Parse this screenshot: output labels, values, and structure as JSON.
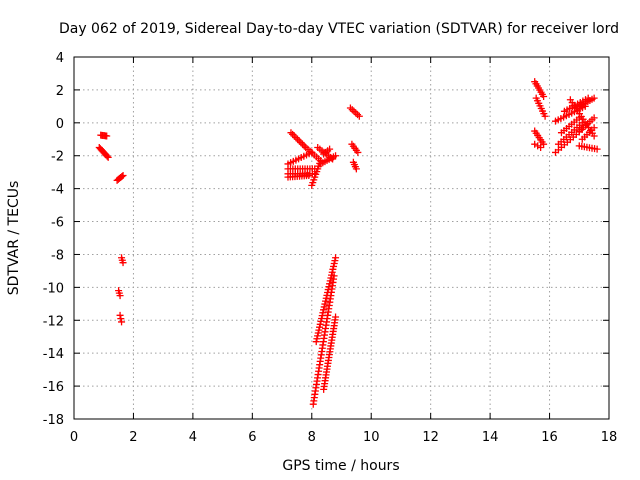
{
  "chart_data": {
    "type": "scatter",
    "title": "Day 062 of 2019, Sidereal Day-to-day VTEC variation (SDTVAR) for receiver lord",
    "xlabel": "GPS time / hours",
    "ylabel": "SDTVAR / TECUs",
    "xlim": [
      0,
      18
    ],
    "ylim": [
      -18,
      4
    ],
    "xticks": [
      0,
      2,
      4,
      6,
      8,
      10,
      12,
      14,
      16,
      18
    ],
    "yticks": [
      -18,
      -16,
      -14,
      -12,
      -10,
      -8,
      -6,
      -4,
      -2,
      0,
      2,
      4
    ],
    "grid": true,
    "marker": "+",
    "color": "#ff0000",
    "segments": [
      {
        "x": [
          0.9,
          1.1
        ],
        "y": [
          -0.75,
          -0.8
        ],
        "n": 6
      },
      {
        "x": [
          0.85,
          1.15
        ],
        "y": [
          -1.5,
          -2.1
        ],
        "n": 10
      },
      {
        "x": [
          1.45,
          1.65
        ],
        "y": [
          -3.5,
          -3.2
        ],
        "n": 6
      },
      {
        "x": [
          1.6,
          1.65
        ],
        "y": [
          -8.2,
          -8.5
        ],
        "n": 3
      },
      {
        "x": [
          1.5,
          1.55
        ],
        "y": [
          -10.2,
          -10.5
        ],
        "n": 3
      },
      {
        "x": [
          1.55,
          1.6
        ],
        "y": [
          -11.7,
          -12.1
        ],
        "n": 3
      },
      {
        "x": [
          7.3,
          7.8
        ],
        "y": [
          -0.6,
          -1.5
        ],
        "n": 10
      },
      {
        "x": [
          7.8,
          8.3
        ],
        "y": [
          -1.5,
          -2.3
        ],
        "n": 8
      },
      {
        "x": [
          7.2,
          8.0
        ],
        "y": [
          -2.5,
          -1.8
        ],
        "n": 10
      },
      {
        "x": [
          7.2,
          8.1
        ],
        "y": [
          -2.8,
          -2.8
        ],
        "n": 12
      },
      {
        "x": [
          7.2,
          8.1
        ],
        "y": [
          -3.1,
          -3.1
        ],
        "n": 12
      },
      {
        "x": [
          7.2,
          7.9
        ],
        "y": [
          -3.3,
          -3.2
        ],
        "n": 10
      },
      {
        "x": [
          8.0,
          8.3
        ],
        "y": [
          -3.8,
          -2.3
        ],
        "n": 10
      },
      {
        "x": [
          8.2,
          8.7
        ],
        "y": [
          -1.5,
          -2.2
        ],
        "n": 8
      },
      {
        "x": [
          8.3,
          8.8
        ],
        "y": [
          -2.5,
          -2.0
        ],
        "n": 8
      },
      {
        "x": [
          8.4,
          8.6
        ],
        "y": [
          -1.9,
          -1.6
        ],
        "n": 4
      },
      {
        "x": [
          8.05,
          8.75
        ],
        "y": [
          -17.1,
          -9.3
        ],
        "n": 40
      },
      {
        "x": [
          8.15,
          8.8
        ],
        "y": [
          -13.3,
          -8.2
        ],
        "n": 30
      },
      {
        "x": [
          8.4,
          8.8
        ],
        "y": [
          -16.2,
          -11.8
        ],
        "n": 26
      },
      {
        "x": [
          9.3,
          9.6
        ],
        "y": [
          0.9,
          0.4
        ],
        "n": 6
      },
      {
        "x": [
          9.35,
          9.55
        ],
        "y": [
          -1.3,
          -1.8
        ],
        "n": 5
      },
      {
        "x": [
          9.4,
          9.5
        ],
        "y": [
          -2.4,
          -2.8
        ],
        "n": 4
      },
      {
        "x": [
          15.5,
          15.8
        ],
        "y": [
          2.5,
          1.6
        ],
        "n": 8
      },
      {
        "x": [
          15.55,
          15.85
        ],
        "y": [
          1.5,
          0.4
        ],
        "n": 8
      },
      {
        "x": [
          15.5,
          15.8
        ],
        "y": [
          -0.5,
          -1.3
        ],
        "n": 7
      },
      {
        "x": [
          15.5,
          15.7
        ],
        "y": [
          -1.3,
          -1.5
        ],
        "n": 3
      },
      {
        "x": [
          16.2,
          17.1
        ],
        "y": [
          -1.8,
          -0.4
        ],
        "n": 10
      },
      {
        "x": [
          16.3,
          17.1
        ],
        "y": [
          -1.3,
          0.0
        ],
        "n": 10
      },
      {
        "x": [
          16.2,
          17.2
        ],
        "y": [
          0.1,
          1.0
        ],
        "n": 12
      },
      {
        "x": [
          16.4,
          17.0
        ],
        "y": [
          -0.6,
          0.3
        ],
        "n": 8
      },
      {
        "x": [
          16.5,
          17.3
        ],
        "y": [
          0.7,
          1.5
        ],
        "n": 10
      },
      {
        "x": [
          16.7,
          17.5
        ],
        "y": [
          1.4,
          -0.8
        ],
        "n": 14
      },
      {
        "x": [
          17.0,
          17.5
        ],
        "y": [
          1.0,
          1.5
        ],
        "n": 8
      },
      {
        "x": [
          17.0,
          17.5
        ],
        "y": [
          -0.5,
          0.3
        ],
        "n": 8
      },
      {
        "x": [
          17.0,
          17.6
        ],
        "y": [
          -1.4,
          -1.6
        ],
        "n": 8
      },
      {
        "x": [
          17.1,
          17.5
        ],
        "y": [
          -1.0,
          -0.3
        ],
        "n": 6
      }
    ]
  }
}
